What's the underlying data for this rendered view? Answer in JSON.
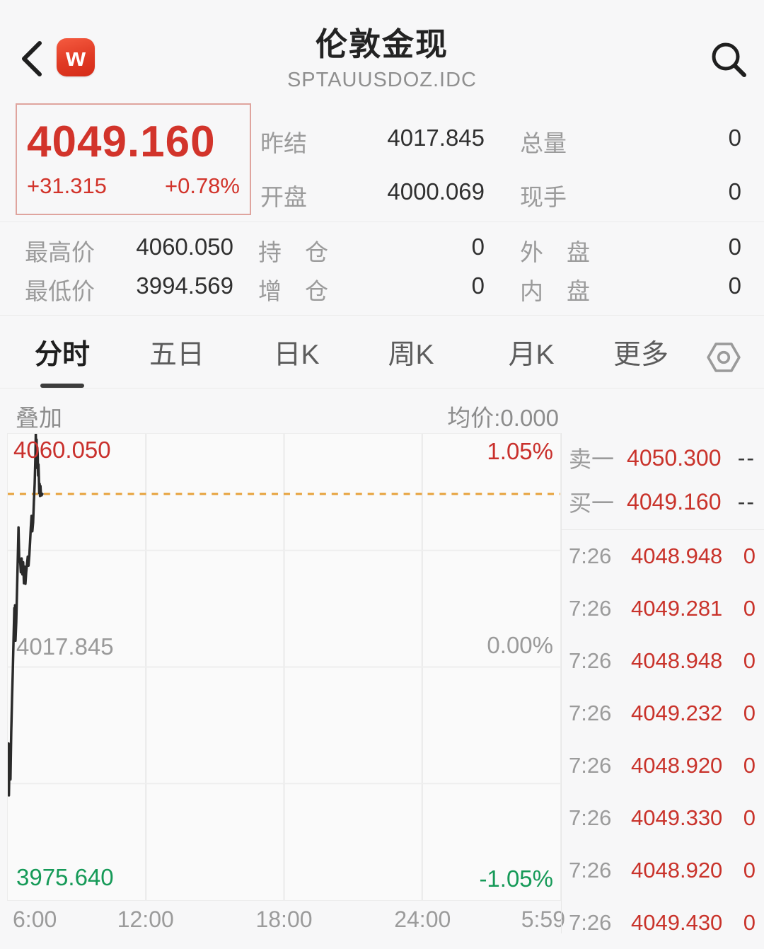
{
  "header": {
    "logo_text": "w",
    "title": "伦敦金现",
    "subtitle": "SPTAUUSDOZ.IDC"
  },
  "quote": {
    "last": "4049.160",
    "change": "+31.315",
    "change_pct": "+0.78%"
  },
  "stats": {
    "r1c1": {
      "label": "昨结",
      "value": "4017.845"
    },
    "r1c2": {
      "label": "总量",
      "value": "0"
    },
    "r2c1": {
      "label": "开盘",
      "value": "4000.069"
    },
    "r2c2": {
      "label": "现手",
      "value": "0"
    },
    "r3": [
      {
        "label": "最高价",
        "value": "4060.050"
      },
      {
        "label": "持　仓",
        "value": "0"
      },
      {
        "label": "外　盘",
        "value": "0"
      }
    ],
    "r4": [
      {
        "label": "最低价",
        "value": "3994.569"
      },
      {
        "label": "增　仓",
        "value": "0"
      },
      {
        "label": "内　盘",
        "value": "0"
      }
    ]
  },
  "tabs": {
    "items": [
      "分时",
      "五日",
      "日K",
      "周K",
      "月K",
      "更多"
    ],
    "active": "分时"
  },
  "chart_header": {
    "overlay": "叠加",
    "avg": "均价:0.000"
  },
  "chart_data": {
    "type": "line",
    "title": "伦敦金现 分时走势",
    "x_ticks": [
      "6:00",
      "12:00",
      "18:00",
      "24:00",
      "5:59"
    ],
    "total_minutes": 1439,
    "ylim": [
      3975.64,
      4060.05
    ],
    "y_labels": {
      "high": "4060.050",
      "mid": "4017.845",
      "low": "3975.640"
    },
    "pct_labels": {
      "high": "1.05%",
      "mid": "0.00%",
      "low": "-1.05%"
    },
    "prev_close": 4017.845,
    "open": 4000.069,
    "high": 4060.05,
    "low": 3994.569,
    "last_price": 4049.16,
    "grid": true,
    "series": [
      {
        "name": "price",
        "points": [
          [
            0,
            4000.1
          ],
          [
            2,
            4004.0
          ],
          [
            3,
            3994.6
          ],
          [
            5,
            4003.5
          ],
          [
            7,
            3997.5
          ],
          [
            9,
            4006.0
          ],
          [
            11,
            4012.0
          ],
          [
            13,
            4017.0
          ],
          [
            15,
            4023.0
          ],
          [
            17,
            4028.5
          ],
          [
            18,
            4024.0
          ],
          [
            19,
            4029.0
          ],
          [
            20,
            4022.6
          ],
          [
            22,
            4026.0
          ],
          [
            24,
            4031.6
          ],
          [
            26,
            4037.0
          ],
          [
            28,
            4043.1
          ],
          [
            30,
            4036.9
          ],
          [
            32,
            4037.4
          ],
          [
            34,
            4035.0
          ],
          [
            36,
            4037.5
          ],
          [
            38,
            4034.6
          ],
          [
            40,
            4036.8
          ],
          [
            42,
            4033.0
          ],
          [
            44,
            4036.0
          ],
          [
            46,
            4032.9
          ],
          [
            48,
            4035.0
          ],
          [
            50,
            4036.4
          ],
          [
            52,
            4037.8
          ],
          [
            54,
            4036.2
          ],
          [
            56,
            4038.0
          ],
          [
            58,
            4040.5
          ],
          [
            60,
            4043.0
          ],
          [
            62,
            4045.2
          ],
          [
            64,
            4042.4
          ],
          [
            66,
            4044.0
          ],
          [
            68,
            4047.8
          ],
          [
            70,
            4051.0
          ],
          [
            72,
            4056.0
          ],
          [
            73,
            4060.0
          ],
          [
            74,
            4057.0
          ],
          [
            75,
            4059.0
          ],
          [
            76,
            4053.9
          ],
          [
            77,
            4057.5
          ],
          [
            78,
            4056.3
          ],
          [
            79,
            4052.5
          ],
          [
            80,
            4054.5
          ],
          [
            81,
            4052.0
          ],
          [
            82,
            4049.3
          ],
          [
            83,
            4051.0
          ],
          [
            84,
            4048.8
          ],
          [
            85,
            4050.6
          ],
          [
            86,
            4049.5
          ],
          [
            88,
            4048.9
          ],
          [
            90,
            4049.16
          ]
        ]
      }
    ]
  },
  "order_book": {
    "rows": [
      {
        "label": "卖一",
        "price": "4050.300",
        "vol": "--"
      },
      {
        "label": "买一",
        "price": "4049.160",
        "vol": "--"
      }
    ]
  },
  "trades": {
    "rows": [
      {
        "time": "7:26",
        "price": "4048.948",
        "vol": "0"
      },
      {
        "time": "7:26",
        "price": "4049.281",
        "vol": "0"
      },
      {
        "time": "7:26",
        "price": "4048.948",
        "vol": "0"
      },
      {
        "time": "7:26",
        "price": "4049.232",
        "vol": "0"
      },
      {
        "time": "7:26",
        "price": "4048.920",
        "vol": "0"
      },
      {
        "time": "7:26",
        "price": "4049.330",
        "vol": "0"
      },
      {
        "time": "7:26",
        "price": "4048.920",
        "vol": "0"
      },
      {
        "time": "7:26",
        "price": "4049.430",
        "vol": "0"
      }
    ]
  },
  "colors": {
    "red": "#d2342b",
    "green": "#169a58",
    "orange_dash": "#e6a23c",
    "label_gray": "#9b9b9b",
    "dark": "#303030"
  }
}
